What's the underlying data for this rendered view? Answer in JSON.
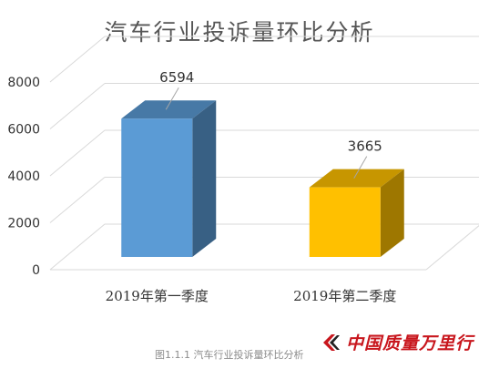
{
  "chart_data": {
    "type": "bar",
    "title": "汽车行业投诉量环比分析",
    "categories": [
      "2019年第一季度",
      "2019年第二季度"
    ],
    "values": [
      6594,
      3665
    ],
    "data_labels": [
      "6594",
      "3665"
    ],
    "ylim": [
      0,
      8000
    ],
    "y_ticks": [
      "0",
      "2000",
      "4000",
      "6000",
      "8000"
    ],
    "colors": [
      "#5b9bd5",
      "#ffc000"
    ],
    "grid": true,
    "style": "3d-box"
  },
  "caption": "图1.1.1  汽车行业投诉量环比分析",
  "watermark": {
    "text": "中国质量万里行",
    "icon": "chevron-logo-icon",
    "color": "#c8161d"
  }
}
